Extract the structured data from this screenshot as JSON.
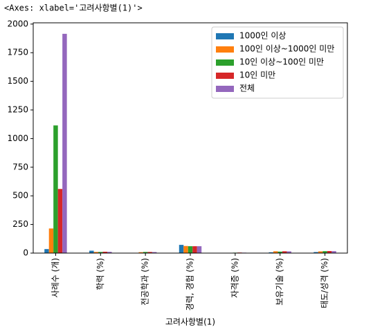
{
  "header": "<Axes: xlabel='고려사항별(1)'>",
  "chart_data": {
    "type": "bar",
    "x_label": "고려사항별(1)",
    "categories": [
      "사례수 (개)",
      "학력 (%)",
      "전공학과 (%)",
      "경력, 경험 (%)",
      "자격증 (%)",
      "보유기술 (%)",
      "태도/성격 (%)"
    ],
    "series": [
      {
        "name": "1000인 이상",
        "color": "#1f77b4",
        "values": [
          35,
          21,
          3,
          72,
          2,
          7,
          9
        ]
      },
      {
        "name": "100인 이상~1000인 미만",
        "color": "#ff7f0e",
        "values": [
          215,
          10,
          8,
          62,
          3,
          16,
          15
        ]
      },
      {
        "name": "10인 이상~100인 미만",
        "color": "#2ca02c",
        "values": [
          1115,
          10,
          10,
          60,
          4,
          13,
          17
        ]
      },
      {
        "name": "10인 미만",
        "color": "#d62728",
        "values": [
          560,
          12,
          10,
          60,
          5,
          16,
          18
        ]
      },
      {
        "name": "전체",
        "color": "#9467bd",
        "values": [
          1915,
          11,
          9,
          60,
          4,
          15,
          17
        ]
      }
    ],
    "ylim": [
      0,
      2011
    ],
    "yticks": [
      0,
      250,
      500,
      750,
      1000,
      1250,
      1500,
      1750,
      2000
    ],
    "legend": "upper right"
  }
}
